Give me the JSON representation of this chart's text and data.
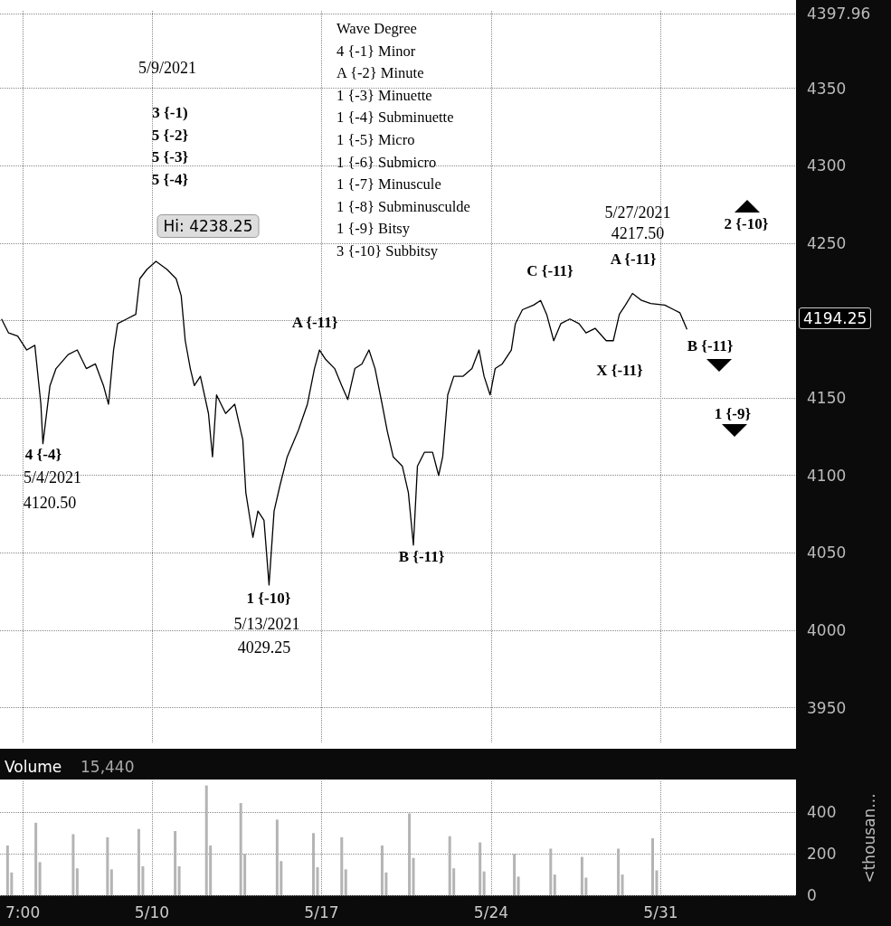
{
  "chart_data": [
    {
      "type": "line",
      "color": "#000000",
      "x": [
        "2021-05-03T19:00",
        "2021-05-04T02:00",
        "2021-05-04T11:00",
        "2021-05-04T20:00",
        "2021-05-05T04:00",
        "2021-05-05T10:00",
        "2021-05-05T12:00",
        "2021-05-05T19:00",
        "2021-05-06T01:00",
        "2021-05-06T13:00",
        "2021-05-06T22:00",
        "2021-05-07T07:00",
        "2021-05-07T16:00",
        "2021-05-08T00:00",
        "2021-05-08T05:00",
        "2021-05-08T10:00",
        "2021-05-08T14:00",
        "2021-05-08T23:00",
        "2021-05-09T08:00",
        "2021-05-09T12:00",
        "2021-05-09T19:00",
        "2021-05-10T04:00",
        "2021-05-10T15:00",
        "2021-05-11T00:00",
        "2021-05-11T05:00",
        "2021-05-11T09:00",
        "2021-05-11T14:00",
        "2021-05-11T18:00",
        "2021-05-12T00:00",
        "2021-05-12T08:00",
        "2021-05-12T12:00",
        "2021-05-12T16:00",
        "2021-05-13T01:00",
        "2021-05-13T10:00",
        "2021-05-13T18:00",
        "2021-05-13T21:00",
        "2021-05-14T04:00",
        "2021-05-14T09:00",
        "2021-05-14T15:00",
        "2021-05-14T20:00",
        "2021-05-15T01:00",
        "2021-05-15T07:00",
        "2021-05-15T14:00",
        "2021-05-16T01:00",
        "2021-05-16T10:00",
        "2021-05-16T17:00",
        "2021-05-16T22:00",
        "2021-05-17T04:00",
        "2021-05-17T13:00",
        "2021-05-17T20:00",
        "2021-05-18T02:00",
        "2021-05-18T09:00",
        "2021-05-18T16:00",
        "2021-05-18T23:00",
        "2021-05-19T05:00",
        "2021-05-19T12:00",
        "2021-05-19T17:00",
        "2021-05-19T23:00",
        "2021-05-20T08:00",
        "2021-05-20T14:00",
        "2021-05-20T19:00",
        "2021-05-20T23:00",
        "2021-05-21T06:00",
        "2021-05-21T14:00",
        "2021-05-21T20:00",
        "2021-05-22T00:00",
        "2021-05-22T05:00",
        "2021-05-22T11:00",
        "2021-05-22T20:00",
        "2021-05-23T05:00",
        "2021-05-23T12:00",
        "2021-05-23T17:00",
        "2021-05-23T23:00",
        "2021-05-24T04:00",
        "2021-05-24T11:00",
        "2021-05-24T20:00",
        "2021-05-25T00:00",
        "2021-05-25T07:00",
        "2021-05-25T18:00",
        "2021-05-26T01:00",
        "2021-05-26T07:00",
        "2021-05-26T14:00",
        "2021-05-26T21:00",
        "2021-05-27T06:00",
        "2021-05-27T15:00",
        "2021-05-27T22:00",
        "2021-05-28T07:00",
        "2021-05-28T18:00",
        "2021-05-29T01:00",
        "2021-05-29T07:00",
        "2021-05-29T13:00",
        "2021-05-29T20:00",
        "2021-05-30T05:00",
        "2021-05-30T14:00",
        "2021-05-31T04:00",
        "2021-05-31T13:00",
        "2021-05-31T19:00",
        "2021-06-01T02:00"
      ],
      "values": [
        4201,
        4192,
        4190,
        4181,
        4184,
        4146,
        4120.5,
        4158,
        4169,
        4178,
        4181,
        4169,
        4172,
        4158,
        4146,
        4181,
        4198,
        4201,
        4204,
        4227,
        4233,
        4238.25,
        4233,
        4227,
        4216,
        4187,
        4169,
        4158,
        4164,
        4140,
        4112,
        4152,
        4140,
        4146,
        4123,
        4089,
        4060,
        4077,
        4071,
        4029.25,
        4077,
        4094,
        4112,
        4129,
        4146,
        4169,
        4181,
        4175,
        4169,
        4158,
        4149,
        4169,
        4172,
        4181,
        4169,
        4146,
        4129,
        4112,
        4106,
        4089,
        4055,
        4106,
        4115,
        4115,
        4100,
        4112,
        4152,
        4164,
        4164,
        4169,
        4181,
        4164,
        4152,
        4169,
        4172,
        4181,
        4198,
        4207,
        4210,
        4213,
        4204,
        4187,
        4198,
        4201,
        4198,
        4192,
        4195,
        4187,
        4187,
        4204,
        4210,
        4217.5,
        4213,
        4211,
        4210,
        4207,
        4205,
        4194.25
      ],
      "xlim": [
        "2021-05-03T17:30",
        "2021-06-05T14:00"
      ],
      "xticks": [
        {
          "value": "2021-05-04T16:00",
          "label": null
        },
        {
          "value": "2021-05-10",
          "label": null
        },
        {
          "value": "2021-05-17",
          "label": null
        },
        {
          "value": "2021-05-24",
          "label": null
        },
        {
          "value": "2021-05-31",
          "label": null
        }
      ],
      "ylim": [
        3927,
        4400
      ],
      "yticks": [
        3950,
        4000,
        4050,
        4100,
        4150,
        {
          "value": 4200,
          "label": null
        },
        4250,
        4300,
        4350,
        {
          "value": 4397.96,
          "label": "4397.96"
        }
      ],
      "grid": true,
      "tick_labels": "y",
      "annotations": [
        "Wave Degree",
        "4 {-1} Minor",
        "A {-2} Minute",
        "1 {-3} Minuette",
        "1 {-4} Subminuette",
        "1 {-5} Micro",
        "1 {-6} Submicro",
        "1 {-7} Minuscule",
        "1 {-8} Subminusculde",
        "1 {-9} Bitsy",
        "3 {-10} Subbitsy",
        "5/9/2021",
        "3 {-1)",
        "5 {-2}",
        "5 {-3}",
        "5 {-4}",
        "Hi: 4238.25",
        "4 {-4}",
        "5/4/2021",
        "4120.50",
        "1 {-10}",
        "5/13/2021",
        "4029.25",
        "A {-11}",
        "B {-11}",
        "C {-11}",
        "5/27/2021",
        "4217.50",
        "A {-11}",
        "X {-11}",
        "B {-11}",
        "1 {-9}",
        "2 {-10}",
        "4194.25"
      ]
    },
    {
      "type": "bar",
      "color": "#b4b4b4",
      "title": "Volume",
      "subtitle": "15,440",
      "ylabel": "<thousan...",
      "x": [
        "2021-05-04T01:00",
        "2021-05-04T05:00",
        "2021-05-05T05:00",
        "2021-05-05T09:00",
        "2021-05-06T18:00",
        "2021-05-06T22:00",
        "2021-05-08T04:00",
        "2021-05-08T08:00",
        "2021-05-09T11:00",
        "2021-05-09T15:00",
        "2021-05-10T23:00",
        "2021-05-11T03:00",
        "2021-05-12T06:00",
        "2021-05-12T10:00",
        "2021-05-13T16:00",
        "2021-05-13T20:00",
        "2021-05-15T04:00",
        "2021-05-15T08:00",
        "2021-05-16T16:00",
        "2021-05-16T20:00",
        "2021-05-17T20:00",
        "2021-05-18T00:00",
        "2021-05-19T12:00",
        "2021-05-19T16:00",
        "2021-05-20T15:00",
        "2021-05-20T19:00",
        "2021-05-22T07:00",
        "2021-05-22T11:00",
        "2021-05-23T13:00",
        "2021-05-23T17:00",
        "2021-05-24T23:00",
        "2021-05-25T03:00",
        "2021-05-26T11:00",
        "2021-05-26T15:00",
        "2021-05-27T18:00",
        "2021-05-27T22:00",
        "2021-05-29T06:00",
        "2021-05-29T10:00",
        "2021-05-30T16:00",
        "2021-05-30T20:00"
      ],
      "values": [
        240,
        110,
        350,
        160,
        295,
        130,
        280,
        125,
        320,
        140,
        310,
        140,
        530,
        240,
        445,
        200,
        365,
        165,
        300,
        135,
        280,
        125,
        240,
        110,
        395,
        180,
        285,
        130,
        255,
        115,
        200,
        90,
        225,
        100,
        185,
        85,
        225,
        100,
        275,
        120
      ],
      "xlim": [
        "2021-05-03T17:30",
        "2021-06-05T14:00"
      ],
      "xticks": [
        {
          "value": "2021-05-04T16:00",
          "label": "7:00"
        },
        {
          "value": "2021-05-10",
          "label": "5/10"
        },
        {
          "value": "2021-05-17",
          "label": "5/17"
        },
        {
          "value": "2021-05-24",
          "label": "5/24"
        },
        {
          "value": "2021-05-31",
          "label": "5/31"
        }
      ],
      "ylim": [
        0,
        550
      ],
      "yticks": [
        0,
        200,
        400
      ],
      "grid": true
    }
  ]
}
